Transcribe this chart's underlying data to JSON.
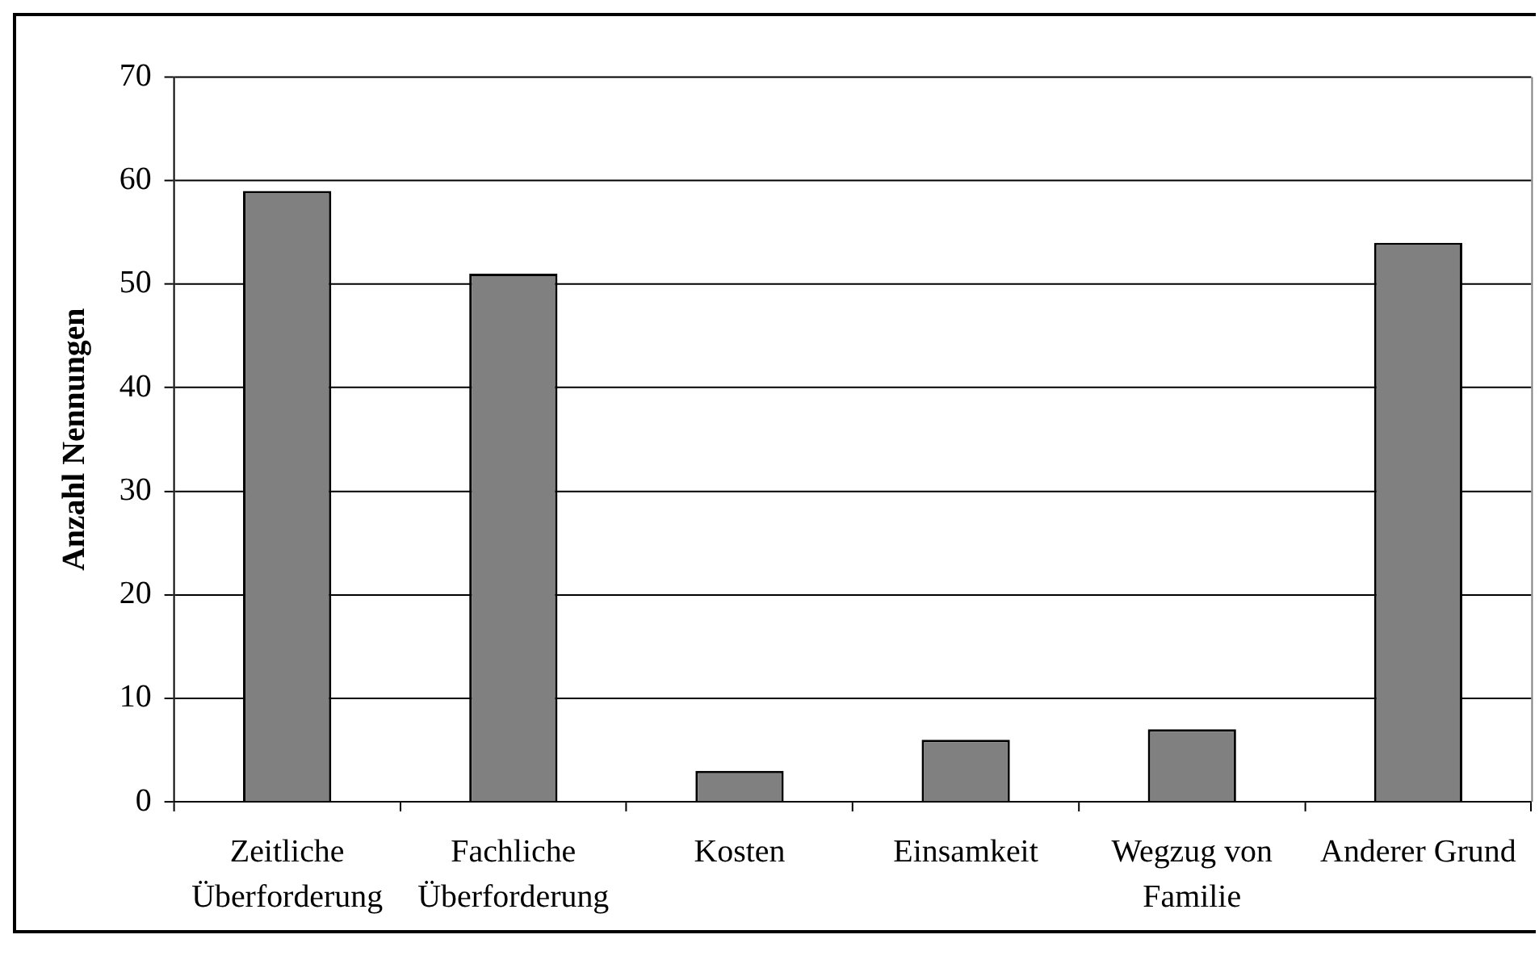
{
  "chart_data": {
    "type": "bar",
    "ylabel": "Anzahl Nennungen",
    "categories": [
      "Zeitliche Überforderung",
      "Fachliche Überforderung",
      "Kosten",
      "Einsamkeit",
      "Wegzug von Familie",
      "Anderer Grund"
    ],
    "values": [
      59,
      51,
      3,
      6,
      7,
      54
    ],
    "color": "#808080",
    "ylim": [
      0,
      70
    ],
    "yticks": [
      0,
      10,
      20,
      30,
      40,
      50,
      60,
      70
    ],
    "grid": "y"
  }
}
